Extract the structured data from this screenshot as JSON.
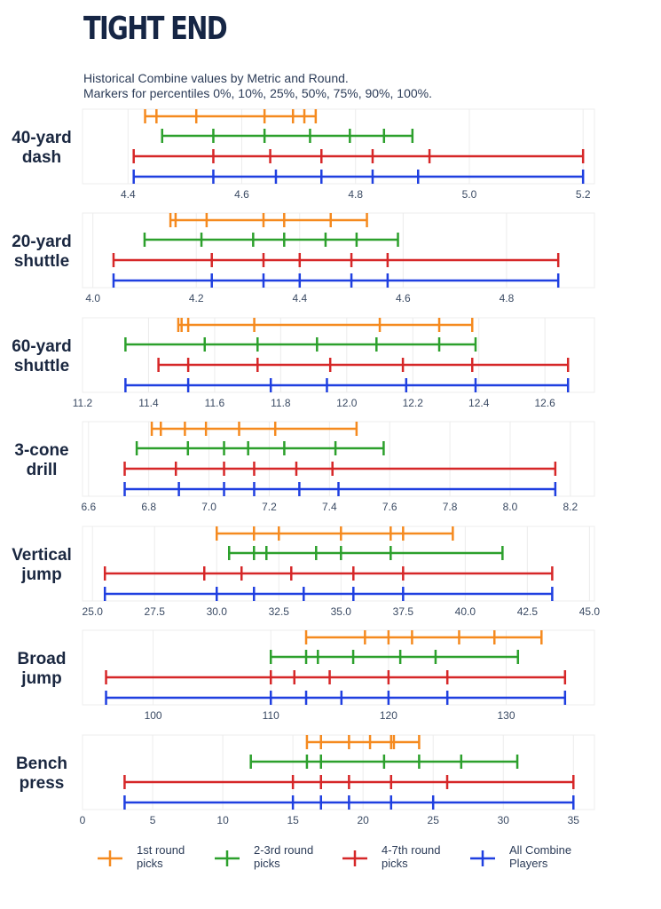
{
  "title": "TIGHT END",
  "subtitle_lines": [
    "Historical Combine values by Metric and Round.",
    "Markers for percentiles 0%, 10%, 25%, 50%, 75%, 90%, 100%."
  ],
  "colors": {
    "1st round picks": "#f58a1f",
    "2-3rd round picks": "#2ca02c",
    "4-7th round picks": "#d62728",
    "All Combine Players": "#1f3fe0",
    "grid": "#ececec",
    "axis_text": "#3a4a63"
  },
  "chart_data": [
    {
      "type": "percentile-range",
      "metric": [
        "40-yard",
        "dash"
      ],
      "xlim": [
        4.32,
        5.22
      ],
      "ticks": [
        4.4,
        4.6,
        4.8,
        5.0,
        5.2
      ],
      "tick_labels": [
        "4.4",
        "4.6",
        "4.8",
        "5.0",
        "5.2"
      ],
      "series": [
        {
          "name": "1st round picks",
          "values": [
            4.43,
            4.45,
            4.52,
            4.64,
            4.69,
            4.71,
            4.73
          ]
        },
        {
          "name": "2-3rd round picks",
          "values": [
            4.46,
            4.55,
            4.64,
            4.72,
            4.79,
            4.85,
            4.9
          ]
        },
        {
          "name": "4-7th round picks",
          "values": [
            4.41,
            4.55,
            4.65,
            4.74,
            4.83,
            4.93,
            5.2
          ]
        },
        {
          "name": "All Combine Players",
          "values": [
            4.41,
            4.55,
            4.66,
            4.74,
            4.83,
            4.91,
            5.2
          ]
        }
      ]
    },
    {
      "type": "percentile-range",
      "metric": [
        "20-yard",
        "shuttle"
      ],
      "xlim": [
        3.98,
        4.97
      ],
      "ticks": [
        4.0,
        4.2,
        4.4,
        4.6,
        4.8
      ],
      "tick_labels": [
        "4.0",
        "4.2",
        "4.4",
        "4.6",
        "4.8"
      ],
      "series": [
        {
          "name": "1st round picks",
          "values": [
            4.15,
            4.16,
            4.22,
            4.33,
            4.37,
            4.46,
            4.53
          ]
        },
        {
          "name": "2-3rd round picks",
          "values": [
            4.1,
            4.21,
            4.31,
            4.37,
            4.45,
            4.51,
            4.59
          ]
        },
        {
          "name": "4-7th round picks",
          "values": [
            4.04,
            4.23,
            4.33,
            4.4,
            4.5,
            4.57,
            4.9
          ]
        },
        {
          "name": "All Combine Players",
          "values": [
            4.04,
            4.23,
            4.33,
            4.4,
            4.5,
            4.57,
            4.9
          ]
        }
      ]
    },
    {
      "type": "percentile-range",
      "metric": [
        "60-yard",
        "shuttle"
      ],
      "xlim": [
        11.2,
        12.75
      ],
      "ticks": [
        11.2,
        11.4,
        11.6,
        11.8,
        12.0,
        12.2,
        12.4,
        12.6
      ],
      "tick_labels": [
        "11.2",
        "11.4",
        "11.6",
        "11.8",
        "12.0",
        "12.2",
        "12.4",
        "12.6"
      ],
      "series": [
        {
          "name": "1st round picks",
          "values": [
            11.49,
            11.5,
            11.52,
            11.72,
            12.1,
            12.28,
            12.38
          ]
        },
        {
          "name": "2-3rd round picks",
          "values": [
            11.33,
            11.57,
            11.73,
            11.91,
            12.09,
            12.28,
            12.39
          ]
        },
        {
          "name": "4-7th round picks",
          "values": [
            11.43,
            11.52,
            11.73,
            11.95,
            12.17,
            12.38,
            12.67
          ]
        },
        {
          "name": "All Combine Players",
          "values": [
            11.33,
            11.52,
            11.77,
            11.94,
            12.18,
            12.39,
            12.67
          ]
        }
      ]
    },
    {
      "type": "percentile-range",
      "metric": [
        "3-cone",
        "drill"
      ],
      "xlim": [
        6.58,
        8.28
      ],
      "ticks": [
        6.6,
        6.8,
        7.0,
        7.2,
        7.4,
        7.6,
        7.8,
        8.0,
        8.2
      ],
      "tick_labels": [
        "6.6",
        "6.8",
        "7.0",
        "7.2",
        "7.4",
        "7.6",
        "7.8",
        "8.0",
        "8.2"
      ],
      "series": [
        {
          "name": "1st round picks",
          "values": [
            6.81,
            6.84,
            6.92,
            6.99,
            7.1,
            7.22,
            7.49
          ]
        },
        {
          "name": "2-3rd round picks",
          "values": [
            6.76,
            6.93,
            7.05,
            7.13,
            7.25,
            7.42,
            7.58
          ]
        },
        {
          "name": "4-7th round picks",
          "values": [
            6.72,
            6.89,
            7.05,
            7.15,
            7.29,
            7.41,
            8.15
          ]
        },
        {
          "name": "All Combine Players",
          "values": [
            6.72,
            6.9,
            7.05,
            7.15,
            7.3,
            7.43,
            8.15
          ]
        }
      ]
    },
    {
      "type": "percentile-range",
      "metric": [
        "Vertical",
        "jump"
      ],
      "xlim": [
        24.6,
        45.2
      ],
      "ticks": [
        25.0,
        27.5,
        30.0,
        32.5,
        35.0,
        37.5,
        40.0,
        42.5,
        45.0
      ],
      "tick_labels": [
        "25.0",
        "27.5",
        "30.0",
        "32.5",
        "35.0",
        "37.5",
        "40.0",
        "42.5",
        "45.0"
      ],
      "series": [
        {
          "name": "1st round picks",
          "values": [
            30.0,
            31.5,
            32.5,
            35.0,
            37.0,
            37.5,
            39.5
          ]
        },
        {
          "name": "2-3rd round picks",
          "values": [
            30.5,
            31.5,
            32.0,
            34.0,
            35.0,
            37.0,
            41.5
          ]
        },
        {
          "name": "4-7th round picks",
          "values": [
            25.5,
            29.5,
            31.0,
            33.0,
            35.5,
            37.5,
            43.5
          ]
        },
        {
          "name": "All Combine Players",
          "values": [
            25.5,
            30.0,
            31.5,
            33.5,
            35.5,
            37.5,
            43.5
          ]
        }
      ]
    },
    {
      "type": "percentile-range",
      "metric": [
        "Broad",
        "jump"
      ],
      "xlim": [
        94,
        137.5
      ],
      "ticks": [
        100,
        110,
        120,
        130
      ],
      "tick_labels": [
        "100",
        "110",
        "120",
        "130"
      ],
      "series": [
        {
          "name": "1st round picks",
          "values": [
            113,
            118,
            120,
            122,
            126,
            129,
            133
          ]
        },
        {
          "name": "2-3rd round picks",
          "values": [
            110,
            113,
            114,
            117,
            121,
            124,
            131
          ]
        },
        {
          "name": "4-7th round picks",
          "values": [
            96,
            110,
            112,
            115,
            120,
            125,
            135
          ]
        },
        {
          "name": "All Combine Players",
          "values": [
            96,
            110,
            113,
            116,
            120,
            125,
            135
          ]
        }
      ]
    },
    {
      "type": "percentile-range",
      "metric": [
        "Bench",
        "press"
      ],
      "xlim": [
        0,
        36.5
      ],
      "ticks": [
        0,
        5,
        10,
        15,
        20,
        25,
        30,
        35
      ],
      "tick_labels": [
        "0",
        "5",
        "10",
        "15",
        "20",
        "25",
        "30",
        "35"
      ],
      "series": [
        {
          "name": "1st round picks",
          "values": [
            16,
            17,
            19,
            20.5,
            22,
            22.2,
            24
          ]
        },
        {
          "name": "2-3rd round picks",
          "values": [
            12,
            16,
            17,
            21.5,
            24,
            27,
            31
          ]
        },
        {
          "name": "4-7th round picks",
          "values": [
            3,
            15,
            17,
            19,
            22,
            26,
            35
          ]
        },
        {
          "name": "All Combine Players",
          "values": [
            3,
            15,
            17,
            19,
            22,
            25,
            35
          ]
        }
      ]
    }
  ],
  "legend": [
    {
      "series": "1st round picks",
      "lines": [
        "1st round",
        "picks"
      ]
    },
    {
      "series": "2-3rd round picks",
      "lines": [
        "2-3rd round",
        "picks"
      ]
    },
    {
      "series": "4-7th round picks",
      "lines": [
        "4-7th round",
        "picks"
      ]
    },
    {
      "series": "All Combine Players",
      "lines": [
        "All Combine",
        "Players"
      ]
    }
  ]
}
